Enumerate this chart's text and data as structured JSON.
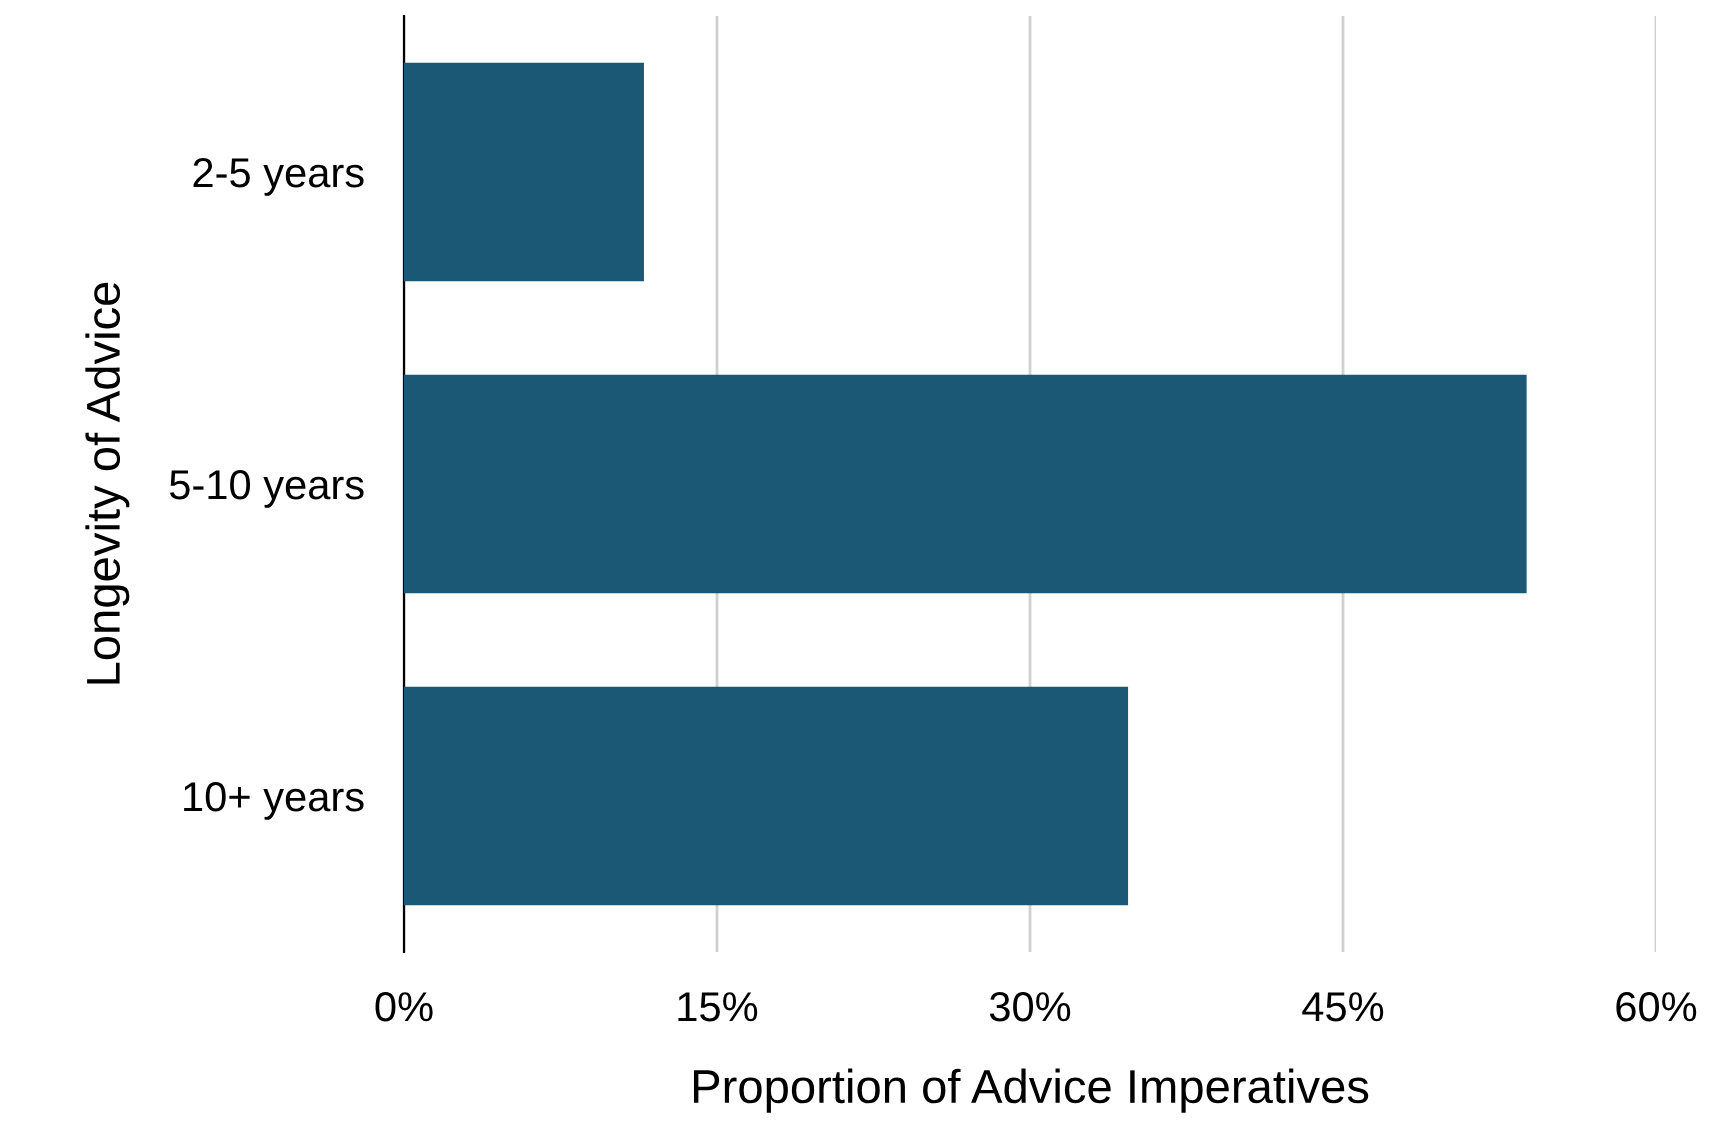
{
  "chart_data": {
    "type": "bar",
    "orientation": "horizontal",
    "categories": [
      "2-5 years",
      "5-10 years",
      "10+ years"
    ],
    "values": [
      11.5,
      53.8,
      34.7
    ],
    "color": "#1b5876",
    "xlabel": "Proportion of Advice Imperatives",
    "ylabel": "Longevity of Advice",
    "xlim": [
      0,
      60
    ],
    "xticks": [
      {
        "value": 0,
        "label": "0%"
      },
      {
        "value": 15,
        "label": "15%"
      },
      {
        "value": 30,
        "label": "30%"
      },
      {
        "value": 45,
        "label": "45%"
      },
      {
        "value": 60,
        "label": "60%"
      }
    ],
    "grid": "x"
  }
}
